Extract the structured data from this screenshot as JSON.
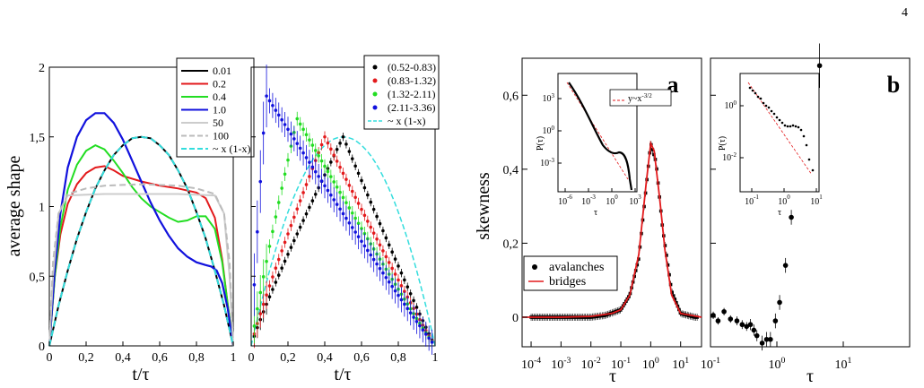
{
  "page_number": "4",
  "chart_data": [
    {
      "id": "shape-left",
      "type": "line",
      "xlabel": "t/τ",
      "ylabel": "average shape",
      "xlim": [
        0,
        1
      ],
      "ylim": [
        0,
        2
      ],
      "x_ticks": [
        "0",
        "0,2",
        "0,4",
        "0,6",
        "0,8",
        "1"
      ],
      "y_ticks": [
        "0",
        "0,5",
        "1",
        "1,5",
        "2"
      ],
      "legend": {
        "placement": "top-right",
        "entries": [
          "0.01",
          "0.2",
          "0.4",
          "1.0",
          "50",
          "100",
          "~ x (1-x)"
        ]
      },
      "series": [
        {
          "name": "0.01",
          "color": "#000000",
          "style": "solid",
          "x": [
            0,
            0.05,
            0.1,
            0.15,
            0.2,
            0.25,
            0.3,
            0.35,
            0.4,
            0.45,
            0.5,
            0.55,
            0.6,
            0.65,
            0.7,
            0.75,
            0.8,
            0.85,
            0.9,
            0.95,
            1
          ],
          "y": [
            0,
            0.29,
            0.54,
            0.77,
            0.96,
            1.13,
            1.26,
            1.37,
            1.44,
            1.49,
            1.5,
            1.49,
            1.44,
            1.37,
            1.26,
            1.13,
            0.96,
            0.77,
            0.54,
            0.29,
            0
          ]
        },
        {
          "name": "0.2",
          "color": "#e31a1c",
          "style": "solid",
          "x": [
            0,
            0.03,
            0.06,
            0.1,
            0.15,
            0.2,
            0.25,
            0.3,
            0.35,
            0.4,
            0.5,
            0.6,
            0.7,
            0.8,
            0.85,
            0.9,
            0.94,
            0.97,
            1
          ],
          "y": [
            0,
            0.5,
            0.8,
            1.02,
            1.16,
            1.24,
            1.28,
            1.29,
            1.26,
            1.22,
            1.18,
            1.15,
            1.13,
            1.1,
            1.06,
            0.92,
            0.62,
            0.3,
            0
          ]
        },
        {
          "name": "0.4",
          "color": "#22dd22",
          "style": "solid",
          "x": [
            0,
            0.03,
            0.06,
            0.1,
            0.15,
            0.2,
            0.25,
            0.3,
            0.35,
            0.4,
            0.45,
            0.5,
            0.55,
            0.6,
            0.65,
            0.7,
            0.75,
            0.8,
            0.85,
            0.9,
            0.94,
            0.97,
            1
          ],
          "y": [
            0,
            0.5,
            0.85,
            1.12,
            1.3,
            1.4,
            1.44,
            1.41,
            1.33,
            1.24,
            1.14,
            1.06,
            1.0,
            0.96,
            0.92,
            0.89,
            0.9,
            0.93,
            0.93,
            0.84,
            0.6,
            0.3,
            0
          ]
        },
        {
          "name": "1.0",
          "color": "#1111dd",
          "style": "solid",
          "x": [
            0,
            0.03,
            0.06,
            0.1,
            0.15,
            0.2,
            0.25,
            0.3,
            0.35,
            0.4,
            0.45,
            0.5,
            0.55,
            0.6,
            0.65,
            0.7,
            0.75,
            0.8,
            0.85,
            0.88,
            0.91,
            0.94,
            0.97,
            1
          ],
          "y": [
            0,
            0.55,
            0.95,
            1.28,
            1.5,
            1.62,
            1.67,
            1.67,
            1.6,
            1.48,
            1.33,
            1.18,
            1.03,
            0.9,
            0.79,
            0.7,
            0.64,
            0.6,
            0.58,
            0.57,
            0.54,
            0.45,
            0.27,
            0
          ]
        },
        {
          "name": "50",
          "color": "#cccccc",
          "style": "solid",
          "x": [
            0,
            0.02,
            0.05,
            0.1,
            0.3,
            0.5,
            0.7,
            0.9,
            0.95,
            0.98,
            1
          ],
          "y": [
            0,
            0.5,
            0.95,
            1.08,
            1.09,
            1.09,
            1.09,
            1.08,
            0.95,
            0.5,
            0
          ]
        },
        {
          "name": "100",
          "color": "#bbbbbb",
          "style": "dashed",
          "x": [
            0,
            0.02,
            0.05,
            0.1,
            0.2,
            0.3,
            0.5,
            0.7,
            0.8,
            0.9,
            0.95,
            0.98,
            1
          ],
          "y": [
            0,
            0.6,
            0.95,
            1.09,
            1.13,
            1.15,
            1.16,
            1.15,
            1.13,
            1.09,
            0.95,
            0.6,
            0
          ]
        },
        {
          "name": "~ x (1-x)",
          "color": "#33dddd",
          "style": "dashed",
          "x": [
            0,
            0.05,
            0.1,
            0.15,
            0.2,
            0.25,
            0.3,
            0.35,
            0.4,
            0.45,
            0.5,
            0.55,
            0.6,
            0.65,
            0.7,
            0.75,
            0.8,
            0.85,
            0.9,
            0.95,
            1
          ],
          "y": [
            0,
            0.29,
            0.54,
            0.77,
            0.96,
            1.13,
            1.26,
            1.37,
            1.44,
            1.49,
            1.5,
            1.49,
            1.44,
            1.37,
            1.26,
            1.13,
            0.96,
            0.77,
            0.54,
            0.29,
            0
          ]
        }
      ]
    },
    {
      "id": "shape-right",
      "type": "scatter",
      "xlabel": "t/τ",
      "xlim": [
        0,
        1
      ],
      "ylim": [
        0,
        2
      ],
      "x_ticks": [
        "0",
        "0,2",
        "0,4",
        "0,6",
        "0,8",
        "1"
      ],
      "legend": {
        "placement": "top-right",
        "entries": [
          "(0.52-0.83)",
          "(0.83-1.32)",
          "(1.32-2.11)",
          "(2.11-3.36)",
          "~ x (1-x)"
        ]
      },
      "series": [
        {
          "name": "(0.52-0.83)",
          "color": "#000000",
          "peak_x": 0.5,
          "peak_y": 1.5,
          "error": 0.03
        },
        {
          "name": "(0.83-1.32)",
          "color": "#e31a1c",
          "peak_x": 0.4,
          "peak_y": 1.5,
          "error": 0.04
        },
        {
          "name": "(1.32-2.11)",
          "color": "#22dd22",
          "peak_x": 0.25,
          "peak_y": 1.63,
          "error": 0.05
        },
        {
          "name": "(2.11-3.36)",
          "color": "#1111dd",
          "peak_x": 0.08,
          "peak_y": 1.8,
          "error": 0.09
        }
      ],
      "fit": {
        "name": "~ x (1-x)",
        "color": "#33dddd",
        "style": "dashed"
      }
    },
    {
      "id": "skewness-a",
      "type": "scatter",
      "panel_label": "a",
      "xlabel": "τ",
      "ylabel": "skewness",
      "x_scale": "log",
      "xlim": [
        5e-05,
        50
      ],
      "ylim": [
        -0.08,
        0.7
      ],
      "x_ticks": [
        {
          "base": "10",
          "exp": "-4",
          "v": 0.0001
        },
        {
          "base": "10",
          "exp": "-3",
          "v": 0.001
        },
        {
          "base": "10",
          "exp": "-2",
          "v": 0.01
        },
        {
          "base": "10",
          "exp": "-1",
          "v": 0.1
        },
        {
          "base": "10",
          "exp": "0",
          "v": 1
        },
        {
          "base": "10",
          "exp": "1",
          "v": 10
        }
      ],
      "y_ticks": [
        {
          "label": "0",
          "v": 0
        },
        {
          "label": "0,2",
          "v": 0.2
        },
        {
          "label": "0,4",
          "v": 0.4
        },
        {
          "label": "0,6",
          "v": 0.6
        }
      ],
      "legend": {
        "placement": "bottom-left",
        "entries": [
          "avalanches",
          "bridges"
        ]
      },
      "series": [
        {
          "name": "avalanches",
          "color": "#000000",
          "x": [
            0.0001,
            0.0003,
            0.001,
            0.003,
            0.01,
            0.03,
            0.1,
            0.2,
            0.4,
            0.7,
            1,
            1.5,
            2.5,
            5,
            10,
            30
          ],
          "y": [
            0.0,
            0.0,
            0.0,
            0.0,
            0.0,
            0.005,
            0.02,
            0.06,
            0.16,
            0.35,
            0.47,
            0.42,
            0.24,
            0.07,
            0.01,
            0.0
          ]
        },
        {
          "name": "bridges",
          "color": "#e31a1c",
          "x": [
            5e-05,
            0.001,
            0.01,
            0.05,
            0.1,
            0.2,
            0.4,
            0.7,
            1,
            1.3,
            2,
            3,
            5,
            10,
            50
          ],
          "y": [
            0,
            0,
            0.002,
            0.01,
            0.02,
            0.06,
            0.17,
            0.36,
            0.47,
            0.45,
            0.32,
            0.18,
            0.06,
            0.01,
            0
          ]
        }
      ],
      "inset": {
        "xlabel": "τ",
        "ylabel": "P(τ)",
        "x_scale": "log",
        "y_scale": "log",
        "x_ticks": [
          {
            "base": "10",
            "exp": "-6"
          },
          {
            "base": "10",
            "exp": "-3"
          },
          {
            "base": "10",
            "exp": "0"
          },
          {
            "base": "10",
            "exp": "3"
          }
        ],
        "y_ticks": [
          {
            "base": "10",
            "exp": "3"
          },
          {
            "base": "10",
            "exp": "0"
          },
          {
            "base": "10",
            "exp": "-3"
          }
        ],
        "legend": "y~x",
        "legend_exp": "-3/2"
      }
    },
    {
      "id": "skewness-b",
      "type": "scatter",
      "panel_label": "b",
      "xlabel": "τ",
      "x_scale": "log",
      "xlim": [
        0.1,
        100
      ],
      "ylim": [
        -0.08,
        0.7
      ],
      "x_ticks": [
        {
          "base": "10",
          "exp": "-1",
          "v": 0.1
        },
        {
          "base": "10",
          "exp": "0",
          "v": 1
        },
        {
          "base": "10",
          "exp": "1",
          "v": 10
        }
      ],
      "series": [
        {
          "name": "",
          "color": "#000000",
          "x": [
            0.11,
            0.13,
            0.16,
            0.2,
            0.25,
            0.3,
            0.35,
            0.4,
            0.45,
            0.5,
            0.6,
            0.7,
            0.8,
            0.95,
            1.1,
            1.35,
            1.65,
            2.0,
            2.45,
            3.0,
            3.7,
            4.4
          ],
          "y": [
            0.005,
            -0.01,
            0.015,
            -0.005,
            -0.01,
            -0.02,
            -0.025,
            -0.02,
            -0.035,
            -0.05,
            -0.07,
            -0.06,
            -0.06,
            -0.01,
            0.04,
            0.14,
            0.27,
            0.42,
            0.45,
            0.5,
            0.61,
            0.68
          ],
          "err": [
            0.01,
            0.01,
            0.01,
            0.01,
            0.012,
            0.012,
            0.012,
            0.015,
            0.015,
            0.015,
            0.02,
            0.02,
            0.02,
            0.02,
            0.02,
            0.02,
            0.02,
            0.02,
            0.025,
            0.03,
            0.05,
            0.06
          ]
        }
      ],
      "inset": {
        "xlabel": "τ",
        "ylabel": "P(τ)",
        "x_scale": "log",
        "y_scale": "log",
        "x_ticks": [
          {
            "base": "10",
            "exp": "-1"
          },
          {
            "base": "10",
            "exp": "0"
          },
          {
            "base": "10",
            "exp": "1"
          }
        ],
        "y_ticks": [
          {
            "base": "10",
            "exp": "0"
          },
          {
            "base": "10",
            "exp": "-2"
          }
        ]
      }
    }
  ]
}
